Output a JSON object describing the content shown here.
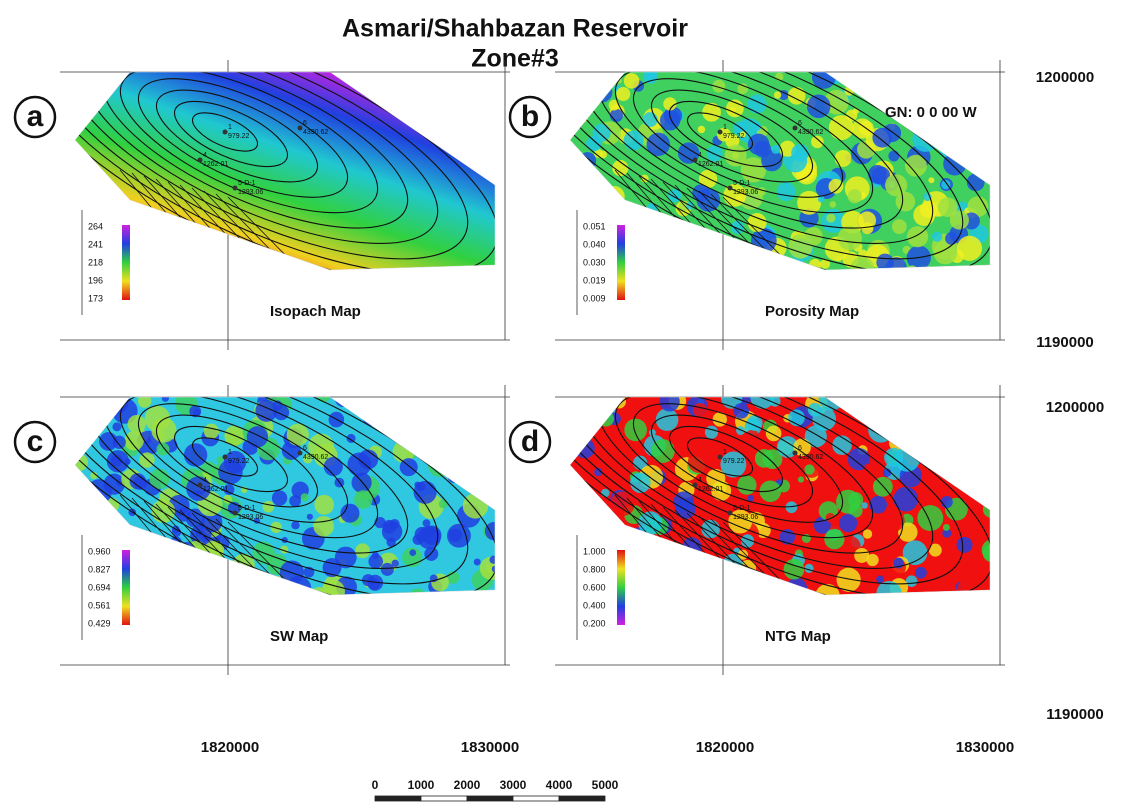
{
  "title": [
    "Asmari/Shahbazan Reservoir",
    "Zone#3"
  ],
  "panels": [
    {
      "letter": "a",
      "caption": "Isopach Map",
      "legend": [
        "264",
        "241",
        "218",
        "196",
        "173"
      ]
    },
    {
      "letter": "b",
      "caption": "Porosity Map",
      "legend": [
        "0.051",
        "0.040",
        "0.030",
        "0.019",
        "0.009"
      ],
      "note": "GN: 0 0 00 W"
    },
    {
      "letter": "c",
      "caption": "SW Map",
      "legend": [
        "0.960",
        "0.827",
        "0.694",
        "0.561",
        "0.429"
      ]
    },
    {
      "letter": "d",
      "caption": "NTG Map",
      "legend": [
        "1.000",
        "0.800",
        "0.600",
        "0.400",
        "0.200"
      ]
    }
  ],
  "wells": [
    {
      "name": "1",
      "value": "979.22"
    },
    {
      "name": "6",
      "value": "4390.62"
    },
    {
      "name": "4",
      "value": "1262.01"
    },
    {
      "name": "5-D-1",
      "value": "1293.06"
    }
  ],
  "x_labels": [
    "1820000",
    "1830000"
  ],
  "y_labels": [
    "1200000",
    "1190000"
  ],
  "scale_bar": [
    "0",
    "1000",
    "2000",
    "3000",
    "4000",
    "5000"
  ]
}
